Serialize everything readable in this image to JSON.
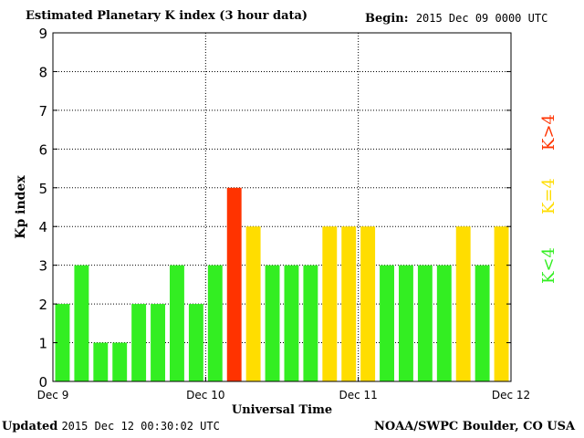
{
  "header": {
    "title": "Estimated Planetary K index (3 hour data)",
    "begin_label": "Begin:",
    "begin_value": "2015 Dec 09 0000 UTC"
  },
  "footer": {
    "updated_label": "Updated",
    "updated_value": "2015 Dec 12 00:30:02 UTC",
    "credit": "NOAA/SWPC Boulder, CO USA"
  },
  "legend": [
    {
      "label": "K<4",
      "color": "#33ee22"
    },
    {
      "label": "K=4",
      "color": "#ffdd00"
    },
    {
      "label": "K>4",
      "color": "#ff3300"
    }
  ],
  "chart_data": {
    "type": "bar",
    "title": "Estimated Planetary K index (3 hour data)",
    "xlabel": "Universal Time",
    "ylabel": "Kp index",
    "ylim": [
      0,
      9
    ],
    "yticks": [
      0,
      1,
      2,
      3,
      4,
      5,
      6,
      7,
      8,
      9
    ],
    "xtick_labels": [
      "Dec 9",
      "Dec 10",
      "Dec 11",
      "Dec 12"
    ],
    "grid": "dotted at day boundaries and each Kp level",
    "values": [
      2,
      3,
      1,
      1,
      2,
      2,
      3,
      2,
      3,
      5,
      4,
      3,
      3,
      3,
      4,
      4,
      4,
      3,
      3,
      3,
      3,
      4,
      3,
      4
    ],
    "colors": {
      "low": "#33ee22",
      "equal": "#ffdd00",
      "high": "#ff3300"
    }
  }
}
